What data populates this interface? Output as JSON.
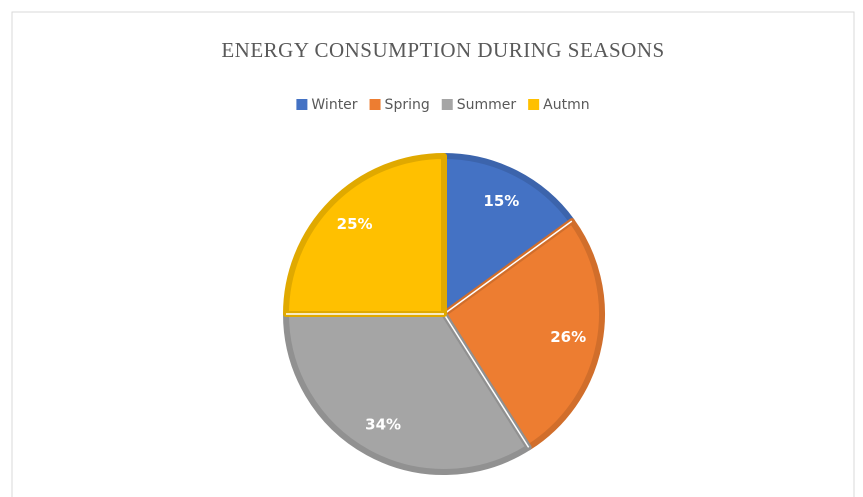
{
  "chart_data": {
    "type": "pie",
    "title": "ENERGY CONSUMPTION DURING SEASONS",
    "categories": [
      "Winter",
      "Spring",
      "Summer",
      "Autmn"
    ],
    "values": [
      15,
      26,
      34,
      25
    ],
    "value_labels": [
      "15%",
      "26%",
      "34%",
      "25%"
    ],
    "colors": [
      "#4472c4",
      "#ed7d31",
      "#a5a5a5",
      "#ffc000"
    ],
    "legend": "top"
  }
}
